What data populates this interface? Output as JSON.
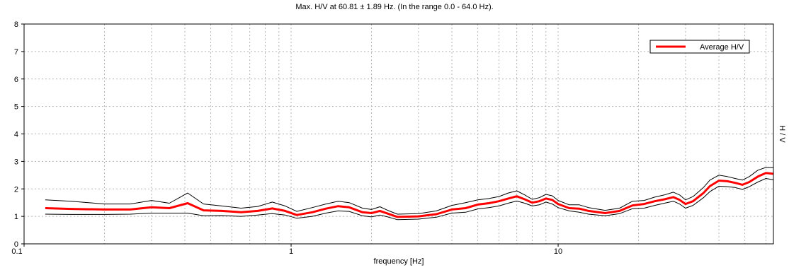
{
  "chart_data": {
    "type": "line",
    "title": "Max. H/V at 60.81 ± 1.89 Hz. (In the range 0.0 - 64.0 Hz).",
    "xlabel": "frequency [Hz]",
    "ylabel": "H / V",
    "x_scale": "log",
    "xlim": [
      0.1,
      64
    ],
    "ylim": [
      0,
      8
    ],
    "x_ticks": [
      {
        "value": 0.1,
        "label": "0.1"
      },
      {
        "value": 1,
        "label": "1"
      },
      {
        "value": 10,
        "label": "10"
      }
    ],
    "y_ticks": [
      {
        "value": 0,
        "label": "0"
      },
      {
        "value": 1,
        "label": "1"
      },
      {
        "value": 2,
        "label": "2"
      },
      {
        "value": 3,
        "label": "3"
      },
      {
        "value": 4,
        "label": "4"
      },
      {
        "value": 5,
        "label": "5"
      },
      {
        "value": 6,
        "label": "6"
      },
      {
        "value": 7,
        "label": "7"
      },
      {
        "value": 8,
        "label": "8"
      }
    ],
    "grid": true,
    "legend_position": "top-right",
    "series": [
      {
        "name": "Average H/V",
        "color": "#ff0000",
        "in_legend": true,
        "points": [
          [
            0.12,
            1.3
          ],
          [
            0.15,
            1.27
          ],
          [
            0.2,
            1.25
          ],
          [
            0.25,
            1.25
          ],
          [
            0.3,
            1.33
          ],
          [
            0.35,
            1.3
          ],
          [
            0.41,
            1.48
          ],
          [
            0.47,
            1.22
          ],
          [
            0.55,
            1.2
          ],
          [
            0.65,
            1.15
          ],
          [
            0.75,
            1.2
          ],
          [
            0.85,
            1.29
          ],
          [
            0.95,
            1.2
          ],
          [
            1.05,
            1.05
          ],
          [
            1.2,
            1.15
          ],
          [
            1.35,
            1.28
          ],
          [
            1.5,
            1.37
          ],
          [
            1.65,
            1.33
          ],
          [
            1.85,
            1.15
          ],
          [
            2.0,
            1.12
          ],
          [
            2.15,
            1.2
          ],
          [
            2.3,
            1.1
          ],
          [
            2.5,
            0.98
          ],
          [
            3.0,
            1.0
          ],
          [
            3.5,
            1.08
          ],
          [
            4.0,
            1.25
          ],
          [
            4.5,
            1.3
          ],
          [
            5.0,
            1.43
          ],
          [
            5.5,
            1.48
          ],
          [
            6.0,
            1.55
          ],
          [
            6.5,
            1.65
          ],
          [
            7.0,
            1.73
          ],
          [
            7.5,
            1.62
          ],
          [
            8.0,
            1.5
          ],
          [
            8.5,
            1.55
          ],
          [
            9.0,
            1.65
          ],
          [
            9.5,
            1.6
          ],
          [
            10.0,
            1.45
          ],
          [
            11.0,
            1.3
          ],
          [
            12.0,
            1.28
          ],
          [
            13.0,
            1.2
          ],
          [
            15.0,
            1.12
          ],
          [
            17.0,
            1.2
          ],
          [
            19.0,
            1.4
          ],
          [
            21.0,
            1.45
          ],
          [
            23.0,
            1.55
          ],
          [
            25.0,
            1.62
          ],
          [
            27.0,
            1.7
          ],
          [
            28.5,
            1.6
          ],
          [
            30.0,
            1.45
          ],
          [
            32.0,
            1.55
          ],
          [
            35.0,
            1.85
          ],
          [
            37.0,
            2.1
          ],
          [
            40.0,
            2.3
          ],
          [
            43.0,
            2.28
          ],
          [
            46.0,
            2.22
          ],
          [
            49.0,
            2.15
          ],
          [
            52.0,
            2.25
          ],
          [
            56.0,
            2.45
          ],
          [
            60.0,
            2.58
          ],
          [
            64.0,
            2.55
          ]
        ]
      },
      {
        "name": "",
        "color": "#000000",
        "in_legend": false,
        "points": [
          [
            0.12,
            1.6
          ],
          [
            0.15,
            1.55
          ],
          [
            0.2,
            1.45
          ],
          [
            0.25,
            1.45
          ],
          [
            0.3,
            1.58
          ],
          [
            0.35,
            1.48
          ],
          [
            0.41,
            1.85
          ],
          [
            0.47,
            1.45
          ],
          [
            0.55,
            1.38
          ],
          [
            0.65,
            1.3
          ],
          [
            0.75,
            1.36
          ],
          [
            0.85,
            1.52
          ],
          [
            0.95,
            1.38
          ],
          [
            1.05,
            1.18
          ],
          [
            1.2,
            1.32
          ],
          [
            1.35,
            1.45
          ],
          [
            1.5,
            1.55
          ],
          [
            1.65,
            1.5
          ],
          [
            1.85,
            1.3
          ],
          [
            2.0,
            1.25
          ],
          [
            2.15,
            1.35
          ],
          [
            2.3,
            1.22
          ],
          [
            2.5,
            1.08
          ],
          [
            3.0,
            1.1
          ],
          [
            3.5,
            1.2
          ],
          [
            4.0,
            1.4
          ],
          [
            4.5,
            1.5
          ],
          [
            5.0,
            1.6
          ],
          [
            5.5,
            1.65
          ],
          [
            6.0,
            1.72
          ],
          [
            6.5,
            1.85
          ],
          [
            7.0,
            1.93
          ],
          [
            7.5,
            1.78
          ],
          [
            8.0,
            1.62
          ],
          [
            8.5,
            1.68
          ],
          [
            9.0,
            1.8
          ],
          [
            9.5,
            1.75
          ],
          [
            10.0,
            1.58
          ],
          [
            11.0,
            1.42
          ],
          [
            12.0,
            1.42
          ],
          [
            13.0,
            1.32
          ],
          [
            15.0,
            1.22
          ],
          [
            17.0,
            1.3
          ],
          [
            19.0,
            1.55
          ],
          [
            21.0,
            1.58
          ],
          [
            23.0,
            1.7
          ],
          [
            25.0,
            1.78
          ],
          [
            27.0,
            1.88
          ],
          [
            28.5,
            1.78
          ],
          [
            30.0,
            1.6
          ],
          [
            32.0,
            1.72
          ],
          [
            35.0,
            2.05
          ],
          [
            37.0,
            2.32
          ],
          [
            40.0,
            2.5
          ],
          [
            43.0,
            2.45
          ],
          [
            46.0,
            2.38
          ],
          [
            49.0,
            2.32
          ],
          [
            52.0,
            2.45
          ],
          [
            56.0,
            2.68
          ],
          [
            60.0,
            2.78
          ],
          [
            64.0,
            2.78
          ]
        ]
      },
      {
        "name": "",
        "color": "#000000",
        "in_legend": false,
        "points": [
          [
            0.12,
            1.08
          ],
          [
            0.15,
            1.07
          ],
          [
            0.2,
            1.07
          ],
          [
            0.25,
            1.08
          ],
          [
            0.3,
            1.12
          ],
          [
            0.35,
            1.12
          ],
          [
            0.41,
            1.12
          ],
          [
            0.47,
            1.02
          ],
          [
            0.55,
            1.03
          ],
          [
            0.65,
            1.0
          ],
          [
            0.75,
            1.05
          ],
          [
            0.85,
            1.1
          ],
          [
            0.95,
            1.05
          ],
          [
            1.05,
            0.93
          ],
          [
            1.2,
            1.0
          ],
          [
            1.35,
            1.12
          ],
          [
            1.5,
            1.2
          ],
          [
            1.65,
            1.18
          ],
          [
            1.85,
            1.02
          ],
          [
            2.0,
            0.98
          ],
          [
            2.15,
            1.05
          ],
          [
            2.3,
            0.98
          ],
          [
            2.5,
            0.88
          ],
          [
            3.0,
            0.9
          ],
          [
            3.5,
            0.97
          ],
          [
            4.0,
            1.12
          ],
          [
            4.5,
            1.15
          ],
          [
            5.0,
            1.27
          ],
          [
            5.5,
            1.32
          ],
          [
            6.0,
            1.38
          ],
          [
            6.5,
            1.48
          ],
          [
            7.0,
            1.56
          ],
          [
            7.5,
            1.48
          ],
          [
            8.0,
            1.38
          ],
          [
            8.5,
            1.42
          ],
          [
            9.0,
            1.52
          ],
          [
            9.5,
            1.45
          ],
          [
            10.0,
            1.32
          ],
          [
            11.0,
            1.2
          ],
          [
            12.0,
            1.15
          ],
          [
            13.0,
            1.08
          ],
          [
            15.0,
            1.02
          ],
          [
            17.0,
            1.1
          ],
          [
            19.0,
            1.28
          ],
          [
            21.0,
            1.3
          ],
          [
            23.0,
            1.4
          ],
          [
            25.0,
            1.48
          ],
          [
            27.0,
            1.55
          ],
          [
            28.5,
            1.45
          ],
          [
            30.0,
            1.3
          ],
          [
            32.0,
            1.4
          ],
          [
            35.0,
            1.68
          ],
          [
            37.0,
            1.9
          ],
          [
            40.0,
            2.1
          ],
          [
            43.0,
            2.08
          ],
          [
            46.0,
            2.05
          ],
          [
            49.0,
            1.98
          ],
          [
            52.0,
            2.08
          ],
          [
            56.0,
            2.25
          ],
          [
            60.0,
            2.38
          ],
          [
            64.0,
            2.33
          ]
        ]
      }
    ]
  }
}
